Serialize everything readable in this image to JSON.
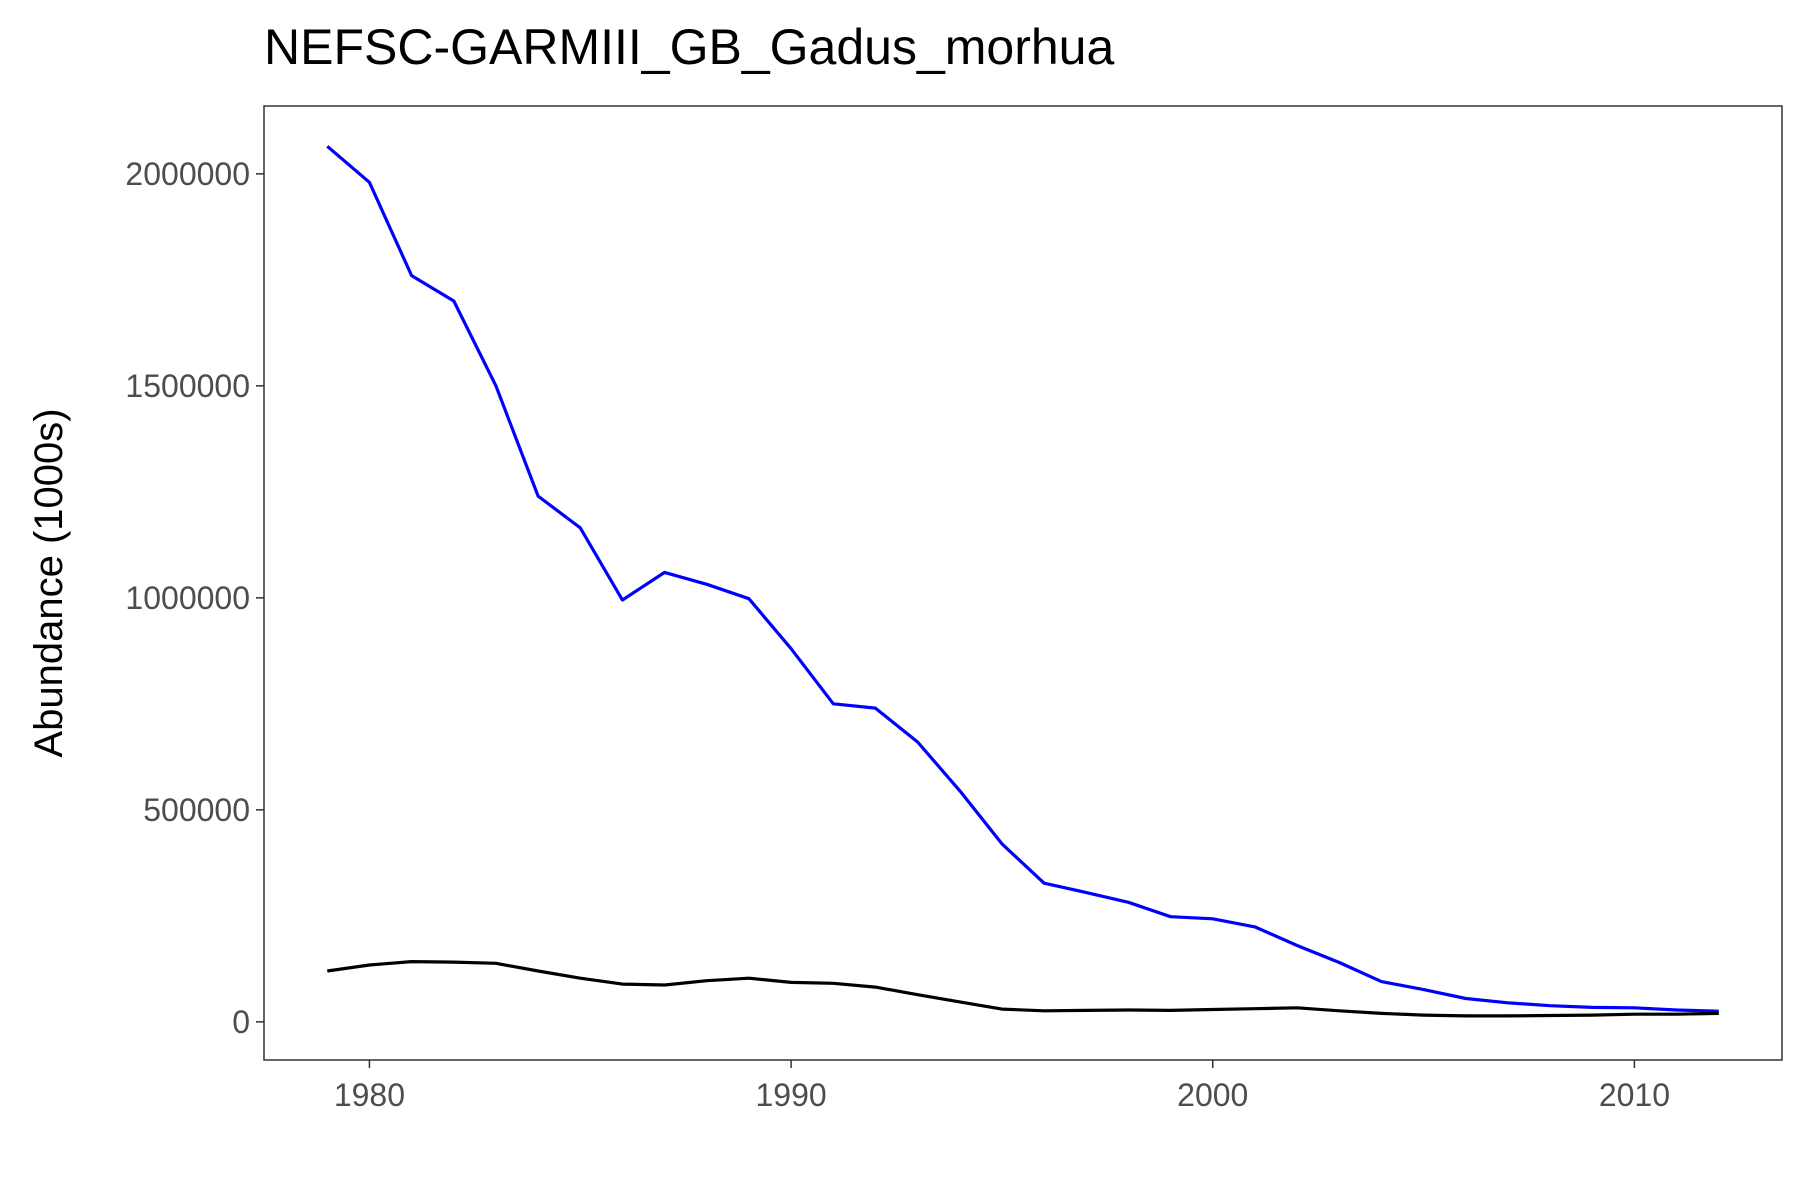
{
  "chart_data": {
    "type": "line",
    "title": "NEFSC-GARMIII_GB_Gadus_morhua",
    "xlabel": "",
    "ylabel": "Abundance (1000s)",
    "xlim": [
      1977.5,
      2013.5
    ],
    "ylim": [
      -90000,
      2160000
    ],
    "xticks": [
      1980,
      1990,
      2000,
      2010
    ],
    "yticks": [
      0,
      500000,
      1000000,
      1500000,
      2000000
    ],
    "grid": false,
    "x": [
      1979,
      1980,
      1981,
      1982,
      1983,
      1984,
      1985,
      1986,
      1987,
      1988,
      1989,
      1990,
      1991,
      1992,
      1993,
      1994,
      1995,
      1996,
      1997,
      1998,
      1999,
      2000,
      2001,
      2002,
      2003,
      2004,
      2005,
      2006,
      2007,
      2008,
      2009,
      2010,
      2011,
      2012
    ],
    "series": [
      {
        "color": "#0000ff",
        "values": [
          2065000,
          1980000,
          1760000,
          1700000,
          1500000,
          1240000,
          1165000,
          995000,
          1060000,
          1032000,
          998000,
          880000,
          750000,
          740000,
          660000,
          545000,
          420000,
          327000,
          305000,
          282000,
          248000,
          243000,
          224000,
          180000,
          140000,
          95000,
          76000,
          55000,
          45000,
          38000,
          34000,
          33000,
          28000,
          25000
        ]
      },
      {
        "color": "#000000",
        "values": [
          120000,
          134000,
          142000,
          141000,
          138000,
          120000,
          103000,
          89000,
          87000,
          97000,
          103000,
          93000,
          91000,
          82000,
          64000,
          47000,
          30000,
          26000,
          27000,
          28000,
          27000,
          29000,
          31000,
          33000,
          26000,
          20000,
          16000,
          14000,
          14000,
          15000,
          16000,
          18000,
          18000,
          20000
        ]
      }
    ]
  }
}
